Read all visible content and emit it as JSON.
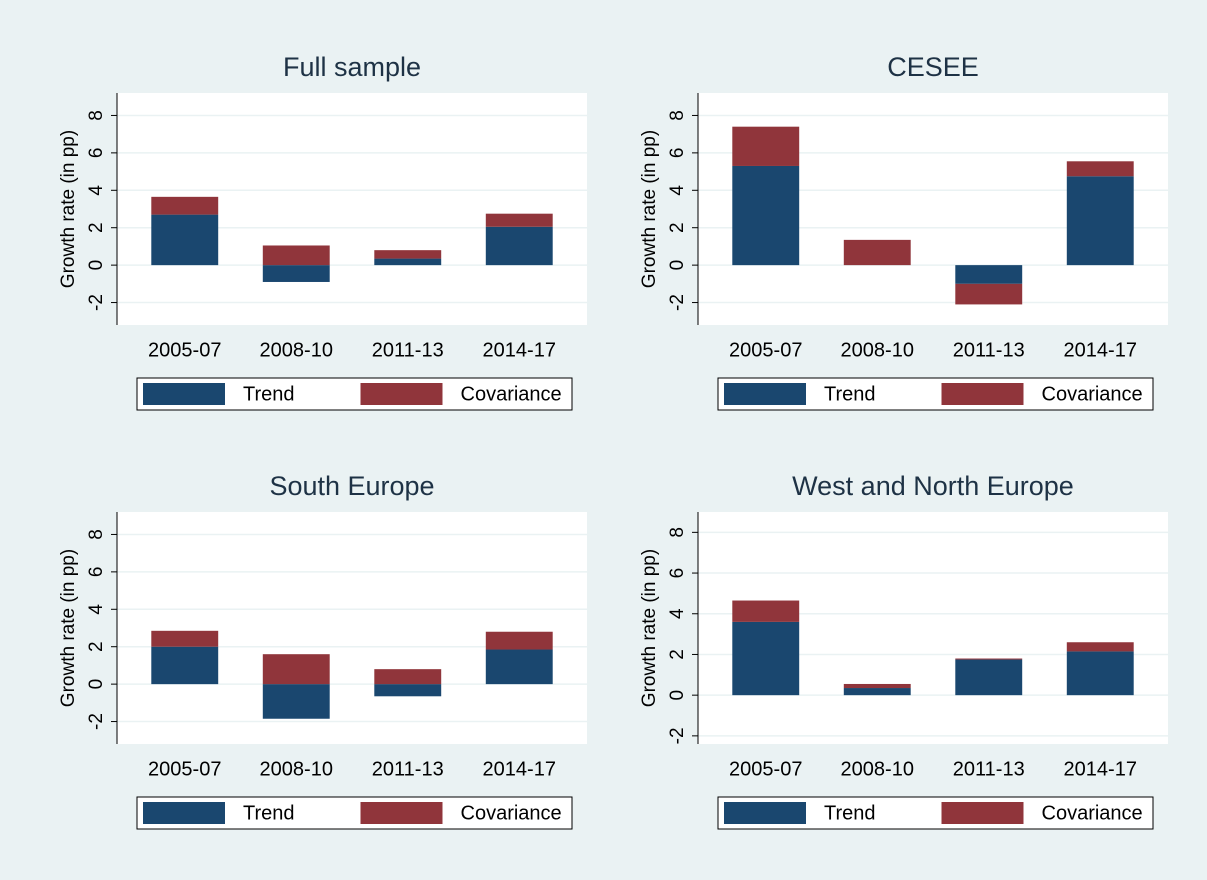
{
  "chart_data": [
    {
      "type": "bar",
      "stacked": true,
      "title": "Full sample",
      "y_label": "Growth rate (in pp)",
      "categories": [
        "2005-07",
        "2008-10",
        "2011-13",
        "2014-17"
      ],
      "series": [
        {
          "name": "Trend",
          "color": "#1a476f",
          "values": [
            2.7,
            -0.9,
            0.35,
            2.05
          ]
        },
        {
          "name": "Covariance",
          "color": "#90353b",
          "values": [
            0.95,
            1.05,
            0.45,
            0.7
          ]
        }
      ],
      "ylim": [
        -3.2,
        9.2
      ],
      "yticks": [
        -2,
        0,
        2,
        4,
        6,
        8
      ],
      "grid": true,
      "legend": "bottom"
    },
    {
      "type": "bar",
      "stacked": true,
      "title": "CESEE",
      "y_label": "Growth rate (in pp)",
      "categories": [
        "2005-07",
        "2008-10",
        "2011-13",
        "2014-17"
      ],
      "series": [
        {
          "name": "Trend",
          "color": "#1a476f",
          "values": [
            5.3,
            0,
            -1.0,
            4.75
          ]
        },
        {
          "name": "Covariance",
          "color": "#90353b",
          "values": [
            2.1,
            1.35,
            -1.1,
            0.8
          ]
        }
      ],
      "ylim": [
        -3.2,
        9.2
      ],
      "yticks": [
        -2,
        0,
        2,
        4,
        6,
        8
      ],
      "grid": true,
      "legend": "bottom"
    },
    {
      "type": "bar",
      "stacked": true,
      "title": "South Europe",
      "y_label": "Growth rate (in pp)",
      "categories": [
        "2005-07",
        "2008-10",
        "2011-13",
        "2014-17"
      ],
      "series": [
        {
          "name": "Trend",
          "color": "#1a476f",
          "values": [
            2.0,
            -1.85,
            -0.65,
            1.85
          ]
        },
        {
          "name": "Covariance",
          "color": "#90353b",
          "values": [
            0.85,
            1.6,
            0.8,
            0.95
          ]
        }
      ],
      "ylim": [
        -3.2,
        9.2
      ],
      "yticks": [
        -2,
        0,
        2,
        4,
        6,
        8
      ],
      "grid": true,
      "legend": "bottom"
    },
    {
      "type": "bar",
      "stacked": true,
      "title": "West and North Europe",
      "y_label": "Growth rate (in pp)",
      "categories": [
        "2005-07",
        "2008-10",
        "2011-13",
        "2014-17"
      ],
      "series": [
        {
          "name": "Trend",
          "color": "#1a476f",
          "values": [
            3.6,
            0.35,
            1.75,
            2.15
          ]
        },
        {
          "name": "Covariance",
          "color": "#90353b",
          "values": [
            1.05,
            0.2,
            0.05,
            0.45
          ]
        }
      ],
      "ylim": [
        -2.4,
        9.0
      ],
      "yticks": [
        -2,
        0,
        2,
        4,
        6,
        8
      ],
      "grid": true,
      "legend": "bottom"
    }
  ]
}
